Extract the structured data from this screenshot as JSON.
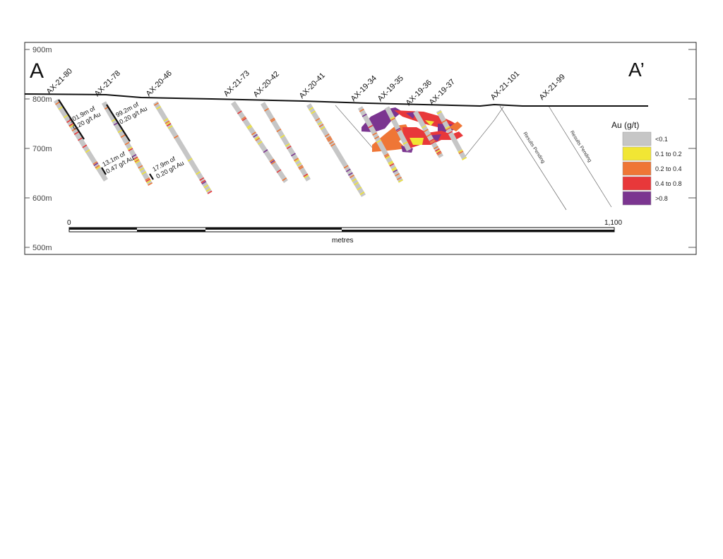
{
  "section": {
    "start_label": "A",
    "end_label": "A’"
  },
  "elevation_labels": [
    "900m",
    "800m",
    "700m",
    "600m",
    "500m"
  ],
  "holes": [
    {
      "name": "AX-21-80"
    },
    {
      "name": "AX-21-78"
    },
    {
      "name": "AX-20-46"
    },
    {
      "name": "AX-21-73"
    },
    {
      "name": "AX-20-42"
    },
    {
      "name": "AX-20-41"
    },
    {
      "name": "AX-19-34"
    },
    {
      "name": "AX-19-35"
    },
    {
      "name": "AX-19-36"
    },
    {
      "name": "AX-19-37"
    },
    {
      "name": "AX-21-101",
      "note": "Results Pending"
    },
    {
      "name": "AX-21-99",
      "note": "Results Pending"
    }
  ],
  "intercepts": [
    {
      "line1": "101.9m of",
      "line2": "0.20 g/t Au"
    },
    {
      "line1": "99.2m of",
      "line2": "0.20 g/t Au"
    },
    {
      "line1": "13.1m of",
      "line2": "0.47 g/t Au"
    },
    {
      "line1": "17.9m of",
      "line2": "0.20 g/t Au"
    }
  ],
  "legend": {
    "title": "Au (g/t)",
    "items": [
      {
        "label": "<0.1",
        "color": "#c6c6c6"
      },
      {
        "label": "0.1 to 0.2",
        "color": "#f1e634"
      },
      {
        "label": "0.2 to 0.4",
        "color": "#ef7636"
      },
      {
        "label": "0.4 to 0.8",
        "color": "#e8383a"
      },
      {
        "label": ">0.8",
        "color": "#7b3590"
      }
    ]
  },
  "scale_bar": {
    "start": "0",
    "end": "1,100",
    "unit": "metres"
  }
}
